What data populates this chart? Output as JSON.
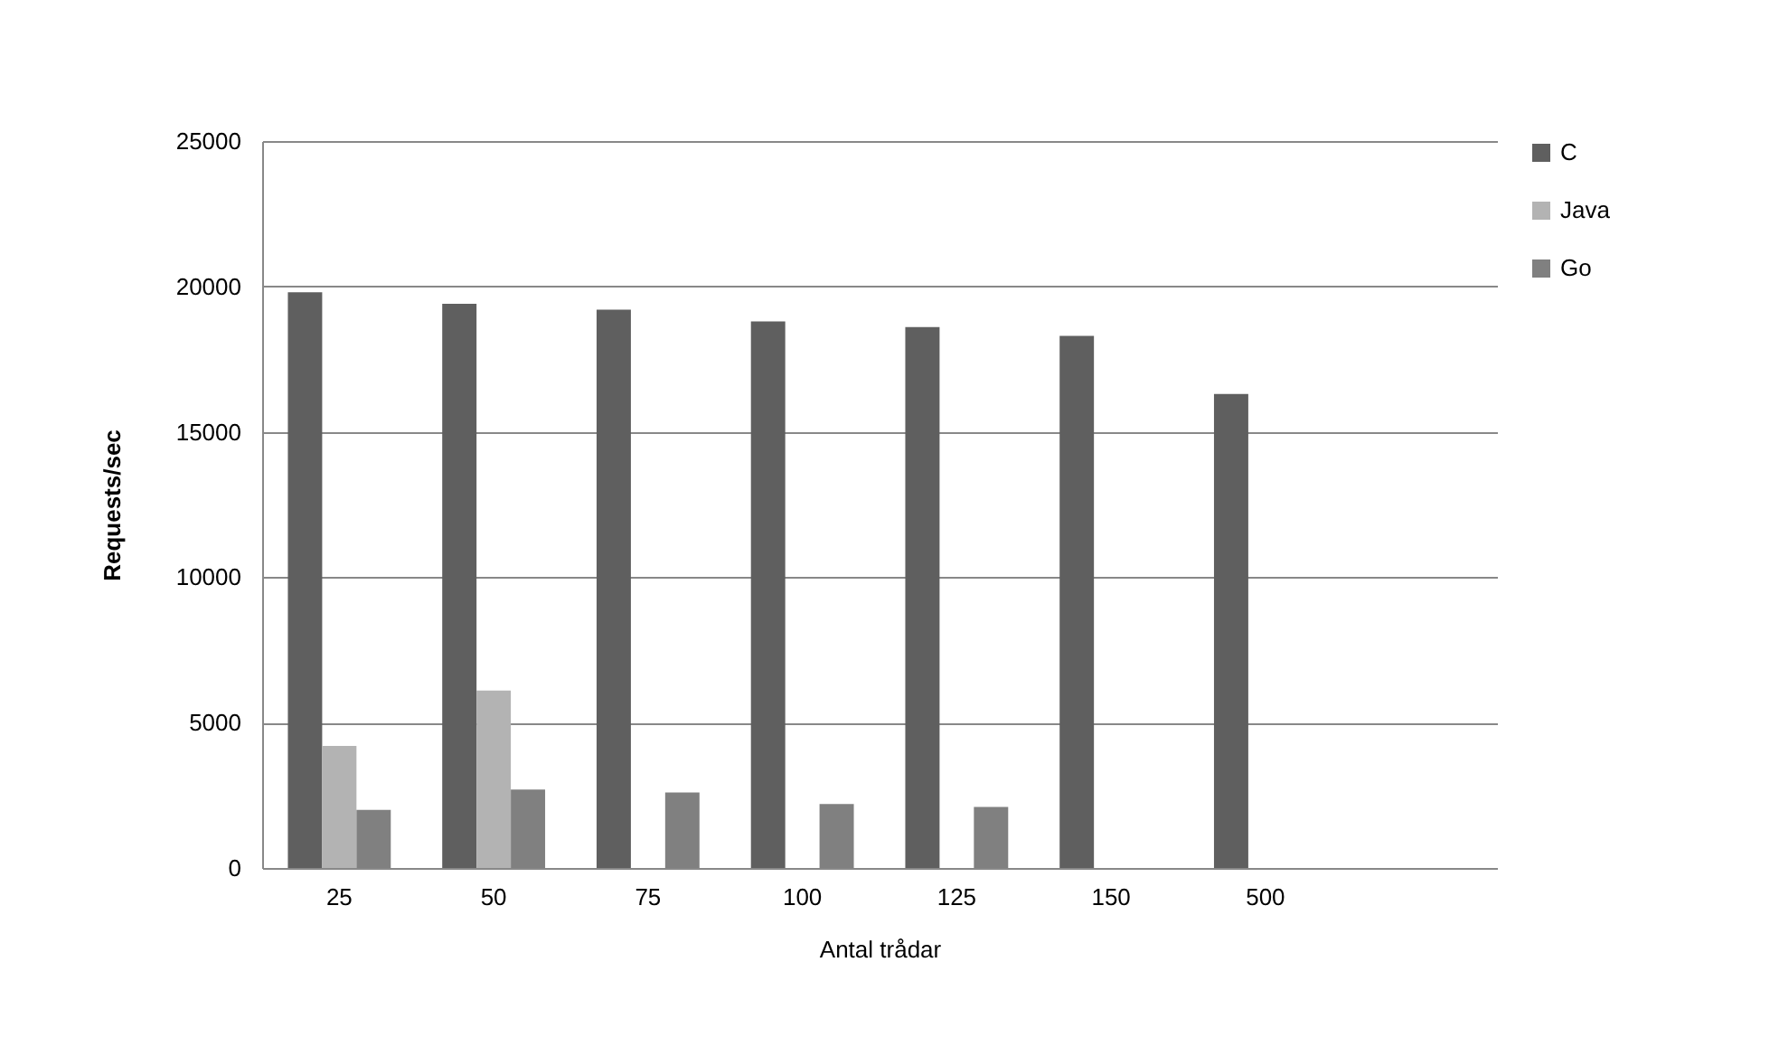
{
  "chart_data": {
    "type": "bar",
    "xlabel": "Antal trådar",
    "ylabel": "Requests/sec",
    "categories": [
      "25",
      "50",
      "75",
      "100",
      "125",
      "150",
      "500",
      null
    ],
    "series": [
      {
        "name": "C",
        "color": "#5f5f5f",
        "values": [
          19800,
          19400,
          19200,
          18800,
          18600,
          18300,
          16300,
          null
        ]
      },
      {
        "name": "Java",
        "color": "#b3b3b3",
        "values": [
          4200,
          6100,
          null,
          null,
          null,
          null,
          null,
          null
        ]
      },
      {
        "name": "Go",
        "color": "#808080",
        "values": [
          2000,
          2700,
          2600,
          2200,
          2100,
          null,
          null,
          null
        ]
      }
    ],
    "ylim": [
      0,
      25000
    ],
    "yticks": [
      0,
      5000,
      10000,
      15000,
      20000,
      25000
    ],
    "grid": "y",
    "legend": "right"
  }
}
